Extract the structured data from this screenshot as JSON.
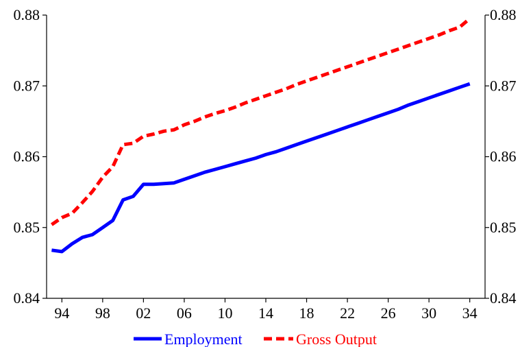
{
  "chart_data": {
    "type": "line",
    "x_tick_labels": [
      "94",
      "98",
      "02",
      "06",
      "10",
      "14",
      "18",
      "22",
      "26",
      "30",
      "34"
    ],
    "x_tick_years": [
      1994,
      1998,
      2002,
      2006,
      2010,
      2014,
      2018,
      2022,
      2026,
      2030,
      2034
    ],
    "xlim": [
      1992.5,
      2035.5
    ],
    "ylim": [
      0.84,
      0.88
    ],
    "y_ticks": [
      0.84,
      0.85,
      0.86,
      0.87,
      0.88
    ],
    "y_tick_labels": [
      "0.84",
      "0.85",
      "0.86",
      "0.87",
      "0.88"
    ],
    "right_axis": true,
    "grid": false,
    "legend_position": "bottom",
    "x": [
      1993,
      1994,
      1995,
      1996,
      1997,
      1998,
      1999,
      2000,
      2001,
      2002,
      2003,
      2004,
      2005,
      2006,
      2007,
      2008,
      2009,
      2010,
      2011,
      2012,
      2013,
      2014,
      2015,
      2016,
      2017,
      2018,
      2019,
      2020,
      2021,
      2022,
      2023,
      2024,
      2025,
      2026,
      2027,
      2028,
      2029,
      2030,
      2031,
      2032,
      2033,
      2034
    ],
    "series": [
      {
        "name": "Employment",
        "color": "#0000ff",
        "dash": "solid",
        "values": [
          0.8468,
          0.8466,
          0.8477,
          0.8486,
          0.849,
          0.85,
          0.851,
          0.8539,
          0.8544,
          0.8561,
          0.8561,
          0.8562,
          0.8563,
          0.8568,
          0.8573,
          0.8578,
          0.8582,
          0.8586,
          0.859,
          0.8594,
          0.8598,
          0.8603,
          0.8607,
          0.8612,
          0.8617,
          0.8622,
          0.8627,
          0.8632,
          0.8637,
          0.8642,
          0.8647,
          0.8652,
          0.8657,
          0.8662,
          0.8667,
          0.8673,
          0.8678,
          0.8683,
          0.8688,
          0.8693,
          0.8698,
          0.8703
        ]
      },
      {
        "name": "Gross Output",
        "color": "#ff0000",
        "dash": "dashed",
        "values": [
          0.8504,
          0.8514,
          0.852,
          0.8535,
          0.8551,
          0.8571,
          0.8586,
          0.8617,
          0.8619,
          0.8629,
          0.8632,
          0.8636,
          0.8638,
          0.8645,
          0.865,
          0.8656,
          0.8661,
          0.8665,
          0.867,
          0.8676,
          0.8681,
          0.8686,
          0.8691,
          0.8696,
          0.8702,
          0.8707,
          0.8712,
          0.8717,
          0.8722,
          0.8727,
          0.8732,
          0.8737,
          0.8742,
          0.8747,
          0.8752,
          0.8757,
          0.8762,
          0.8767,
          0.8772,
          0.8778,
          0.8783,
          0.8795
        ]
      }
    ]
  },
  "legend": {
    "employment_label": "Employment",
    "gross_output_label": "Gross Output"
  }
}
